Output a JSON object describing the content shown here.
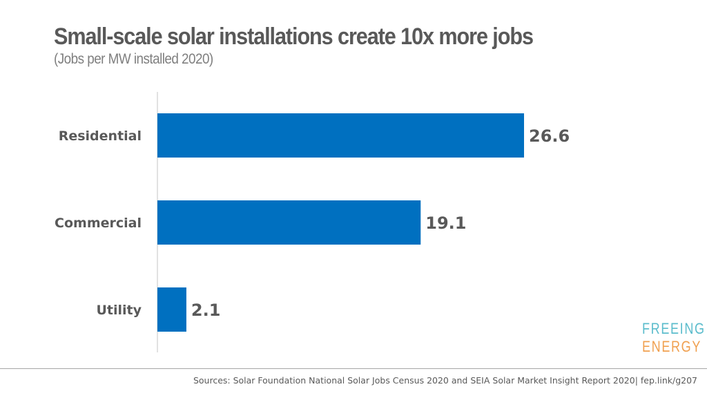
{
  "title": "Small-scale solar installations create 10x more jobs",
  "subtitle": "(Jobs per MW installed 2020)",
  "logo": {
    "line1": "FREEING",
    "line2": "ENERGY"
  },
  "source": "Sources: Solar Foundation National Solar Jobs Census 2020 and SEIA Solar Market Insight Report 2020| fep.link/g207",
  "colors": {
    "bar": "#0070c0",
    "label": "#595959",
    "axis": "#d9d9d9"
  },
  "chart_data": {
    "type": "bar",
    "orientation": "horizontal",
    "categories": [
      "Residential",
      "Commercial",
      "Utility"
    ],
    "values": [
      26.6,
      19.1,
      2.1
    ],
    "value_labels": [
      "26.6",
      "19.1",
      "2.1"
    ],
    "title": "Small-scale solar installations create 10x more jobs",
    "subtitle": "(Jobs per MW installed 2020)",
    "xlabel": "",
    "ylabel": "",
    "xlim": [
      0,
      30
    ],
    "grid": false,
    "legend": "none"
  }
}
